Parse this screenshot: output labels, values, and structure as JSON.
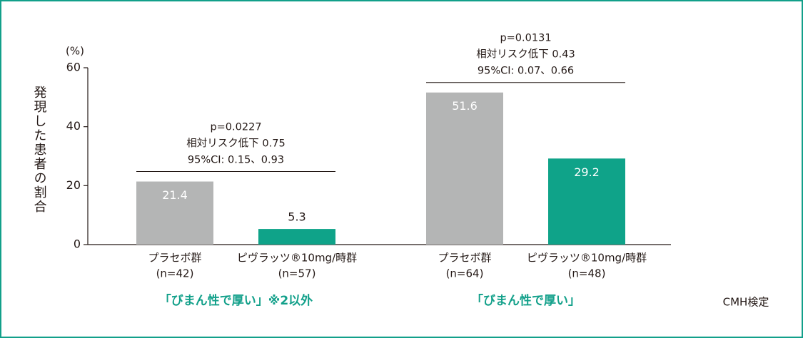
{
  "chart_data": {
    "type": "bar",
    "y_label": "発現した患者の割合",
    "y_unit": "(%)",
    "ylim": [
      0,
      60
    ],
    "yticks": [
      0,
      20,
      40,
      60
    ],
    "footnote": "CMH検定",
    "groups": [
      {
        "name": "「びまん性で厚い」※2以外",
        "annotation": [
          "p=0.0227",
          "相対リスク低下 0.75",
          "95%CI: 0.15、0.93"
        ],
        "categories": [
          [
            "プラセボ群",
            "(n=42)"
          ],
          [
            "ピヴラッツ®10mg/時群",
            "(n=57)"
          ]
        ],
        "values": [
          21.4,
          5.3
        ],
        "colors": [
          "#b4b5b5",
          "#0fa389"
        ]
      },
      {
        "name": "「びまん性で厚い」",
        "annotation": [
          "p=0.0131",
          "相対リスク低下 0.43",
          "95%CI: 0.07、0.66"
        ],
        "categories": [
          [
            "プラセボ群",
            "(n=64)"
          ],
          [
            "ピヴラッツ®10mg/時群",
            "(n=48)"
          ]
        ],
        "values": [
          51.6,
          29.2
        ],
        "colors": [
          "#b4b5b5",
          "#0fa389"
        ]
      }
    ]
  }
}
